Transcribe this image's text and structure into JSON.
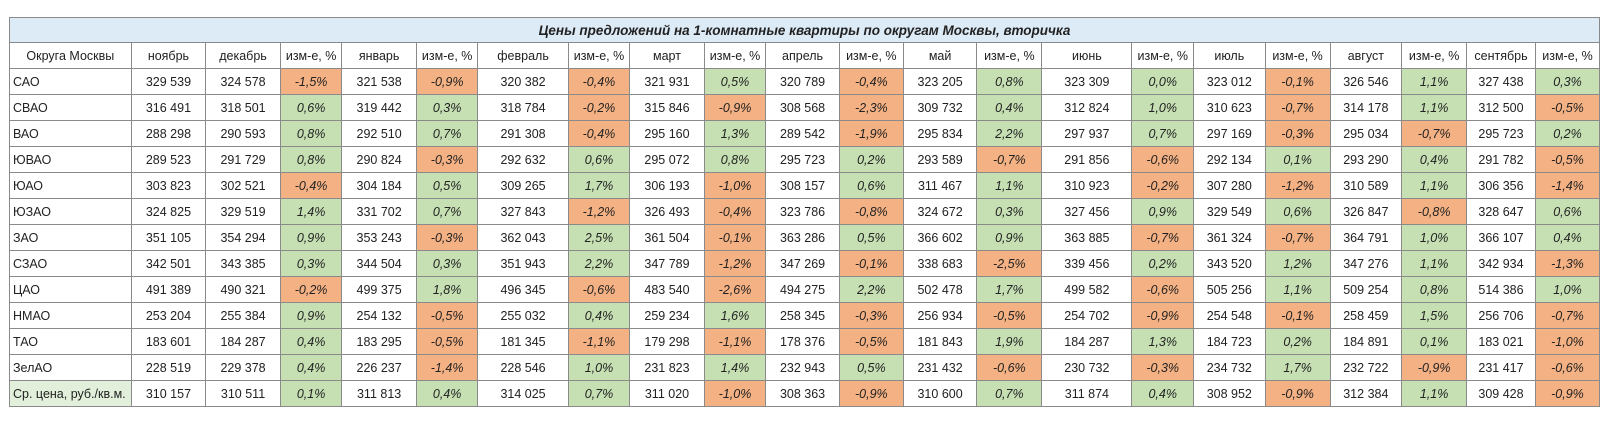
{
  "title": "Цены предложений на 1-комнатные квартиры по округам Москвы, вторичка",
  "headers": [
    "Округа Москвы",
    "ноябрь",
    "декабрь",
    "изм-е, %",
    "январь",
    "изм-е, %",
    "февраль",
    "изм-е, %",
    "март",
    "изм-е, %",
    "апрель",
    "изм-е, %",
    "май",
    "изм-е, %",
    "июнь",
    "изм-е, %",
    "июль",
    "изм-е, %",
    "август",
    "изм-е, %",
    "сентябрь",
    "изм-е, %"
  ],
  "colors": {
    "positive": "#c6e0b4",
    "negative": "#f4b183",
    "title_bg": "#ddebf7"
  },
  "rows": [
    [
      "САО",
      "329 539",
      "324 578",
      "-1,5%",
      "321 538",
      "-0,9%",
      "320 382",
      "-0,4%",
      "321 931",
      "0,5%",
      "320 789",
      "-0,4%",
      "323 205",
      "0,8%",
      "323 309",
      "0,0%",
      "323 012",
      "-0,1%",
      "326 546",
      "1,1%",
      "327 438",
      "0,3%"
    ],
    [
      "СВАО",
      "316 491",
      "318 501",
      "0,6%",
      "319 442",
      "0,3%",
      "318 784",
      "-0,2%",
      "315 846",
      "-0,9%",
      "308 568",
      "-2,3%",
      "309 732",
      "0,4%",
      "312 824",
      "1,0%",
      "310 623",
      "-0,7%",
      "314 178",
      "1,1%",
      "312 500",
      "-0,5%"
    ],
    [
      "ВАО",
      "288 298",
      "290 593",
      "0,8%",
      "292 510",
      "0,7%",
      "291 308",
      "-0,4%",
      "295 160",
      "1,3%",
      "289 542",
      "-1,9%",
      "295 834",
      "2,2%",
      "297 937",
      "0,7%",
      "297 169",
      "-0,3%",
      "295 034",
      "-0,7%",
      "295 723",
      "0,2%"
    ],
    [
      "ЮВАО",
      "289 523",
      "291 729",
      "0,8%",
      "290 824",
      "-0,3%",
      "292 632",
      "0,6%",
      "295 072",
      "0,8%",
      "295 723",
      "0,2%",
      "293 589",
      "-0,7%",
      "291 856",
      "-0,6%",
      "292 134",
      "0,1%",
      "293 290",
      "0,4%",
      "291 782",
      "-0,5%"
    ],
    [
      "ЮАО",
      "303 823",
      "302 521",
      "-0,4%",
      "304 184",
      "0,5%",
      "309 265",
      "1,7%",
      "306 193",
      "-1,0%",
      "308 157",
      "0,6%",
      "311 467",
      "1,1%",
      "310 923",
      "-0,2%",
      "307 280",
      "-1,2%",
      "310 589",
      "1,1%",
      "306 356",
      "-1,4%"
    ],
    [
      "ЮЗАО",
      "324 825",
      "329 519",
      "1,4%",
      "331 702",
      "0,7%",
      "327 843",
      "-1,2%",
      "326 493",
      "-0,4%",
      "323 786",
      "-0,8%",
      "324 672",
      "0,3%",
      "327 456",
      "0,9%",
      "329 549",
      "0,6%",
      "326 847",
      "-0,8%",
      "328 647",
      "0,6%"
    ],
    [
      "ЗАО",
      "351 105",
      "354 294",
      "0,9%",
      "353 243",
      "-0,3%",
      "362 043",
      "2,5%",
      "361 504",
      "-0,1%",
      "363 286",
      "0,5%",
      "366 602",
      "0,9%",
      "363 885",
      "-0,7%",
      "361 324",
      "-0,7%",
      "364 791",
      "1,0%",
      "366 107",
      "0,4%"
    ],
    [
      "СЗАО",
      "342 501",
      "343 385",
      "0,3%",
      "344 504",
      "0,3%",
      "351 943",
      "2,2%",
      "347 789",
      "-1,2%",
      "347 269",
      "-0,1%",
      "338 683",
      "-2,5%",
      "339 456",
      "0,2%",
      "343 520",
      "1,2%",
      "347 276",
      "1,1%",
      "342 934",
      "-1,3%"
    ],
    [
      "ЦАО",
      "491 389",
      "490 321",
      "-0,2%",
      "499 375",
      "1,8%",
      "496 345",
      "-0,6%",
      "483 540",
      "-2,6%",
      "494 275",
      "2,2%",
      "502 478",
      "1,7%",
      "499 582",
      "-0,6%",
      "505 256",
      "1,1%",
      "509 254",
      "0,8%",
      "514 386",
      "1,0%"
    ],
    [
      "НМАО",
      "253 204",
      "255 384",
      "0,9%",
      "254 132",
      "-0,5%",
      "255 032",
      "0,4%",
      "259 234",
      "1,6%",
      "258 345",
      "-0,3%",
      "256 934",
      "-0,5%",
      "254 702",
      "-0,9%",
      "254 548",
      "-0,1%",
      "258 459",
      "1,5%",
      "256 706",
      "-0,7%"
    ],
    [
      "ТАО",
      "183 601",
      "184 287",
      "0,4%",
      "183 295",
      "-0,5%",
      "181 345",
      "-1,1%",
      "179 298",
      "-1,1%",
      "178 376",
      "-0,5%",
      "181 843",
      "1,9%",
      "184 287",
      "1,3%",
      "184 723",
      "0,2%",
      "184 891",
      "0,1%",
      "183 021",
      "-1,0%"
    ],
    [
      "ЗелАО",
      "228 519",
      "229 378",
      "0,4%",
      "226 237",
      "-1,4%",
      "228 546",
      "1,0%",
      "231 823",
      "1,4%",
      "232 943",
      "0,5%",
      "231 432",
      "-0,6%",
      "230 732",
      "-0,3%",
      "234 732",
      "1,7%",
      "232 722",
      "-0,9%",
      "231 417",
      "-0,6%"
    ],
    [
      "Ср. цена, руб./кв.м.",
      "310 157",
      "310 511",
      "0,1%",
      "311 813",
      "0,4%",
      "314 025",
      "0,7%",
      "311 020",
      "-1,0%",
      "308 363",
      "-0,9%",
      "310 600",
      "0,7%",
      "311 874",
      "0,4%",
      "308 952",
      "-0,9%",
      "312 384",
      "1,1%",
      "309 428",
      "-0,9%"
    ]
  ]
}
